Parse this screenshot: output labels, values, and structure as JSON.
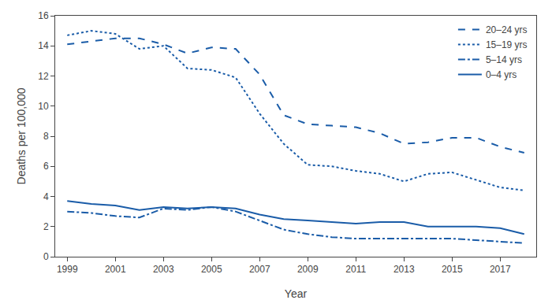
{
  "chart_data": {
    "type": "line",
    "x": [
      1999,
      2000,
      2001,
      2002,
      2003,
      2004,
      2005,
      2006,
      2007,
      2008,
      2009,
      2010,
      2011,
      2012,
      2013,
      2014,
      2015,
      2016,
      2017,
      2018
    ],
    "series": [
      {
        "name": "20–24 yrs",
        "color": "#1a5ca8",
        "line_style": "dash",
        "values": [
          14.1,
          14.3,
          14.5,
          14.5,
          14.1,
          13.5,
          13.9,
          13.8,
          12.1,
          9.4,
          8.8,
          8.7,
          8.6,
          8.2,
          7.5,
          7.6,
          7.9,
          7.9,
          7.3,
          6.9
        ]
      },
      {
        "name": "15–19 yrs",
        "color": "#1a5ca8",
        "line_style": "dot",
        "values": [
          14.7,
          15.0,
          14.8,
          13.8,
          14.0,
          12.5,
          12.4,
          11.9,
          9.5,
          7.5,
          6.1,
          6.0,
          5.7,
          5.5,
          5.0,
          5.5,
          5.6,
          5.1,
          4.6,
          4.4
        ]
      },
      {
        "name": "5–14 yrs",
        "color": "#1a5ca8",
        "line_style": "dashdot",
        "values": [
          3.0,
          2.9,
          2.7,
          2.6,
          3.2,
          3.1,
          3.3,
          3.0,
          2.4,
          1.8,
          1.5,
          1.3,
          1.2,
          1.2,
          1.2,
          1.2,
          1.2,
          1.1,
          1.0,
          0.9
        ]
      },
      {
        "name": "0–4 yrs",
        "color": "#1a5ca8",
        "line_style": "solid",
        "values": [
          3.7,
          3.5,
          3.4,
          3.1,
          3.3,
          3.2,
          3.3,
          3.2,
          2.8,
          2.5,
          2.4,
          2.3,
          2.2,
          2.3,
          2.3,
          2.0,
          2.0,
          2.0,
          1.9,
          1.5
        ]
      }
    ],
    "xlabel": "Year",
    "ylabel": "Deaths per 100,000",
    "xlim": [
      1998.5,
      2018.5
    ],
    "xticks": [
      1999,
      2001,
      2003,
      2005,
      2007,
      2009,
      2011,
      2013,
      2015,
      2017
    ],
    "ylim": [
      0,
      16
    ],
    "yticks": [
      0,
      2,
      4,
      6,
      8,
      10,
      12,
      14,
      16
    ],
    "grid": false,
    "legend": "upper right"
  }
}
